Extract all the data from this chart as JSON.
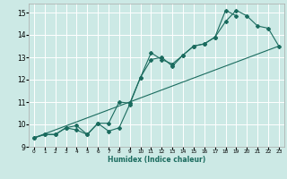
{
  "xlabel": "Humidex (Indice chaleur)",
  "ylabel": "",
  "xlim": [
    -0.5,
    23.5
  ],
  "ylim": [
    9,
    15.4
  ],
  "yticks": [
    9,
    10,
    11,
    12,
    13,
    14,
    15
  ],
  "xticks": [
    0,
    1,
    2,
    3,
    4,
    5,
    6,
    7,
    8,
    9,
    10,
    11,
    12,
    13,
    14,
    15,
    16,
    17,
    18,
    19,
    20,
    21,
    22,
    23
  ],
  "bg_color": "#cce9e5",
  "grid_color": "#ffffff",
  "line_color": "#1a6b5e",
  "lines": [
    {
      "x": [
        0,
        1,
        2,
        3,
        4,
        5,
        6,
        7,
        8,
        9,
        10,
        11,
        12,
        13,
        14,
        15,
        16,
        17,
        18,
        19
      ],
      "y": [
        9.4,
        9.55,
        9.55,
        9.85,
        9.75,
        9.55,
        10.05,
        9.7,
        9.85,
        10.9,
        12.1,
        13.2,
        12.9,
        12.7,
        13.1,
        13.5,
        13.6,
        13.9,
        15.1,
        14.85
      ]
    },
    {
      "x": [
        0,
        1,
        2,
        3,
        4,
        5,
        6,
        7,
        8,
        9,
        10,
        11,
        12,
        13,
        14,
        15,
        16,
        17,
        18,
        19,
        20,
        21,
        22,
        23
      ],
      "y": [
        9.4,
        9.55,
        9.55,
        9.85,
        9.95,
        9.55,
        10.05,
        10.05,
        11.0,
        10.95,
        12.1,
        12.9,
        13.0,
        12.6,
        13.1,
        13.5,
        13.6,
        13.9,
        14.6,
        15.1,
        14.85,
        14.4,
        14.3,
        13.5
      ]
    },
    {
      "x": [
        0,
        23
      ],
      "y": [
        9.4,
        13.5
      ]
    }
  ]
}
